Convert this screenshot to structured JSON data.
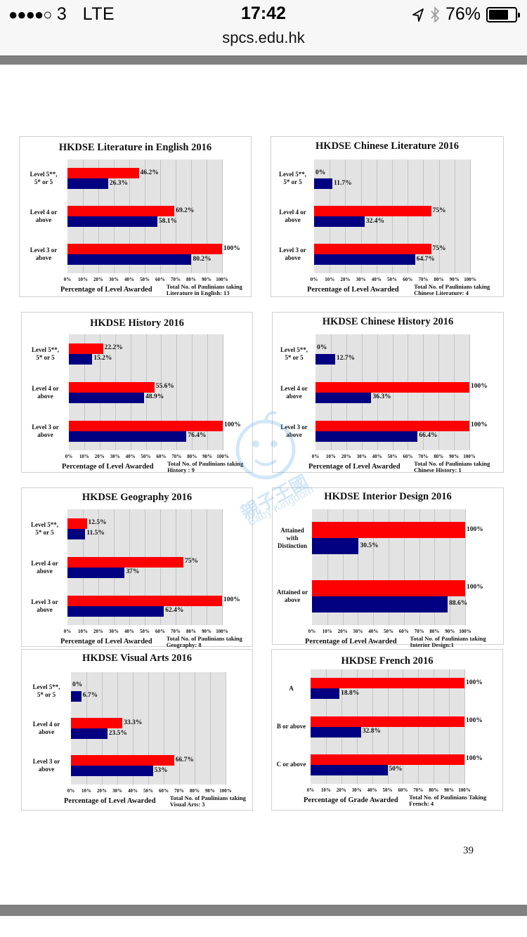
{
  "status_bar": {
    "signal": "●●●●○",
    "carrier": "3",
    "network": "LTE",
    "time": "17:42",
    "battery": "76%",
    "battery_level": 0.76
  },
  "browser": {
    "url": "spcs.edu.hk"
  },
  "page_number": "39",
  "watermark": {
    "chinese": "親子王國",
    "english": "Baby Kingdom"
  },
  "colors": {
    "series_red": "#ff0000",
    "series_blue": "#000080",
    "plot_bg": "#e3e3e3"
  },
  "chart_data": [
    {
      "type": "bar",
      "orientation": "horizontal",
      "title": "HKDSE Literature in English 2016",
      "categories": [
        "Level 5**, 5* or 5",
        "Level 4 or above",
        "Level 3 or above"
      ],
      "category_lines": [
        [
          "Level 5**,",
          "5* or 5"
        ],
        [
          "Level 4 or",
          "above"
        ],
        [
          "Level 3 or",
          "above"
        ]
      ],
      "series": [
        {
          "name": "red",
          "values": [
            46.2,
            69.2,
            100
          ],
          "labels": [
            "46.2%",
            "69.2%",
            "100%"
          ]
        },
        {
          "name": "blue",
          "values": [
            26.3,
            58.1,
            80.2
          ],
          "labels": [
            "26.3%",
            "58.1%",
            "80.2%"
          ]
        }
      ],
      "xticks": [
        "0%",
        "10%",
        "20%",
        "30%",
        "40%",
        "50%",
        "60%",
        "70%",
        "80%",
        "90%",
        "100%"
      ],
      "xlim": [
        0,
        100
      ],
      "xlabel": "Percentage of Level Awarded",
      "note": [
        "Total No. of Paulinians taking",
        "Literature in English: 13"
      ],
      "grid": true
    },
    {
      "type": "bar",
      "orientation": "horizontal",
      "title": "HKDSE Chinese Literature 2016",
      "categories": [
        "Level 5**, 5* or 5",
        "Level 4 or above",
        "Level 3 or above"
      ],
      "category_lines": [
        [
          "Level 5**,",
          "5* or 5"
        ],
        [
          "Level 4 or",
          "above"
        ],
        [
          "Level 3 or",
          "above"
        ]
      ],
      "series": [
        {
          "name": "red",
          "values": [
            0,
            75,
            75
          ],
          "labels": [
            "0%",
            "75%",
            "75%"
          ]
        },
        {
          "name": "blue",
          "values": [
            11.7,
            32.4,
            64.7
          ],
          "labels": [
            "11.7%",
            "32.4%",
            "64.7%"
          ]
        }
      ],
      "xticks": [
        "0%",
        "10%",
        "20%",
        "30%",
        "40%",
        "50%",
        "60%",
        "70%",
        "80%",
        "90%",
        "100%"
      ],
      "xlim": [
        0,
        100
      ],
      "xlabel": "Percentage of Level Awarded",
      "note": [
        "Total No. of Paulinians taking",
        "Chinese Literature: 4"
      ],
      "grid": true
    },
    {
      "type": "bar",
      "orientation": "horizontal",
      "title": "HKDSE History 2016",
      "categories": [
        "Level 5**, 5* or 5",
        "Level 4 or above",
        "Level 3 or above"
      ],
      "category_lines": [
        [
          "Level 5**,",
          "5* or 5"
        ],
        [
          "Level 4 or",
          "above"
        ],
        [
          "Level 3 or",
          "above"
        ]
      ],
      "series": [
        {
          "name": "red",
          "values": [
            22.2,
            55.6,
            100
          ],
          "labels": [
            "22.2%",
            "55.6%",
            "100%"
          ]
        },
        {
          "name": "blue",
          "values": [
            15.2,
            48.9,
            76.4
          ],
          "labels": [
            "15.2%",
            "48.9%",
            "76.4%"
          ]
        }
      ],
      "xticks": [
        "0%",
        "10%",
        "20%",
        "30%",
        "40%",
        "50%",
        "60%",
        "70%",
        "80%",
        "90%",
        "100%"
      ],
      "xlim": [
        0,
        100
      ],
      "xlabel": "Percentage of Level Awarded",
      "note": [
        "Total No. of Paulinians taking",
        "History : 9"
      ],
      "grid": true
    },
    {
      "type": "bar",
      "orientation": "horizontal",
      "title": "HKDSE Chinese History 2016",
      "categories": [
        "Level 5**, 5* or 5",
        "Level 4 or above",
        "Level 3 or above"
      ],
      "category_lines": [
        [
          "Level 5**,",
          "5* or 5"
        ],
        [
          "Level 4 or",
          "above"
        ],
        [
          "Level 3 or",
          "above"
        ]
      ],
      "series": [
        {
          "name": "red",
          "values": [
            0,
            100,
            100
          ],
          "labels": [
            "0%",
            "100%",
            "100%"
          ]
        },
        {
          "name": "blue",
          "values": [
            12.7,
            36.3,
            66.4
          ],
          "labels": [
            "12.7%",
            "36.3%",
            "66.4%"
          ]
        }
      ],
      "xticks": [
        "0%",
        "10%",
        "20%",
        "30%",
        "40%",
        "50%",
        "60%",
        "70%",
        "80%",
        "90%",
        "100%"
      ],
      "xlim": [
        0,
        100
      ],
      "xlabel": "Percentage of Level Awarded",
      "note": [
        "Total No. of Paulinians taking",
        "Chinese History: 1"
      ],
      "grid": true
    },
    {
      "type": "bar",
      "orientation": "horizontal",
      "title": "HKDSE Geography 2016",
      "categories": [
        "Level 5**, 5* or 5",
        "Level 4 or above",
        "Level 3 or above"
      ],
      "category_lines": [
        [
          "Level 5**,",
          "5* or 5"
        ],
        [
          "Level 4 or",
          "above"
        ],
        [
          "Level 3 or",
          "above"
        ]
      ],
      "series": [
        {
          "name": "red",
          "values": [
            12.5,
            75,
            100
          ],
          "labels": [
            "12.5%",
            "75%",
            "100%"
          ]
        },
        {
          "name": "blue",
          "values": [
            11.5,
            37,
            62.4
          ],
          "labels": [
            "11.5%",
            "37%",
            "62.4%"
          ]
        }
      ],
      "xticks": [
        "0%",
        "10%",
        "20%",
        "30%",
        "40%",
        "50%",
        "60%",
        "70%",
        "80%",
        "90%",
        "100%"
      ],
      "xlim": [
        0,
        100
      ],
      "xlabel": "Percentage of Level Awarded",
      "note": [
        "Total No. of Paulinians taking",
        "Geography: 8"
      ],
      "grid": true
    },
    {
      "type": "bar",
      "orientation": "horizontal",
      "title": "HKDSE Interior Design 2016",
      "categories": [
        "Attained with Distinction",
        "Attained or above"
      ],
      "category_lines": [
        [
          "Attained",
          "with",
          "Distinction"
        ],
        [
          "Attained or",
          "above"
        ]
      ],
      "series": [
        {
          "name": "red",
          "values": [
            100,
            100
          ],
          "labels": [
            "100%",
            "100%"
          ]
        },
        {
          "name": "blue",
          "values": [
            30.5,
            88.6
          ],
          "labels": [
            "30.5%",
            "88.6%"
          ]
        }
      ],
      "xticks": [
        "0%",
        "10%",
        "20%",
        "30%",
        "40%",
        "50%",
        "60%",
        "70%",
        "80%",
        "90%",
        "100%"
      ],
      "xlim": [
        0,
        100
      ],
      "xlabel": "Percentage of Level Awarded",
      "note": [
        "Total No. of Paulinians taking",
        "Interior Design:1"
      ],
      "grid": true
    },
    {
      "type": "bar",
      "orientation": "horizontal",
      "title": "HKDSE Visual Arts 2016",
      "categories": [
        "Level 5**, 5* or 5",
        "Level 4 or above",
        "Level 3 or above"
      ],
      "category_lines": [
        [
          "Level 5**,",
          "5* or 5"
        ],
        [
          "Level 4 or",
          "above"
        ],
        [
          "Level 3 or",
          "above"
        ]
      ],
      "series": [
        {
          "name": "red",
          "values": [
            0,
            33.3,
            66.7
          ],
          "labels": [
            "0%",
            "33.3%",
            "66.7%"
          ]
        },
        {
          "name": "blue",
          "values": [
            6.7,
            23.5,
            53
          ],
          "labels": [
            "6.7%",
            "23.5%",
            "53%"
          ]
        }
      ],
      "xticks": [
        "0%",
        "10%",
        "20%",
        "30%",
        "40%",
        "50%",
        "60%",
        "70%",
        "80%",
        "90%",
        "100%"
      ],
      "xlim": [
        0,
        100
      ],
      "xlabel": "Percentage of Level Awarded",
      "note": [
        "Total No. of Paulinians taking",
        "Visual Arts: 3"
      ],
      "grid": true
    },
    {
      "type": "bar",
      "orientation": "horizontal",
      "title": "HKDSE French 2016",
      "categories": [
        "A",
        "B or above",
        "C or above"
      ],
      "category_lines": [
        [
          "A"
        ],
        [
          "B or above"
        ],
        [
          "C or above"
        ]
      ],
      "series": [
        {
          "name": "red",
          "values": [
            100,
            100,
            100
          ],
          "labels": [
            "100%",
            "100%",
            "100%"
          ]
        },
        {
          "name": "blue",
          "values": [
            18.8,
            32.8,
            50
          ],
          "labels": [
            "18.8%",
            "32.8%",
            "50%"
          ]
        }
      ],
      "xticks": [
        "0%",
        "10%",
        "20%",
        "30%",
        "40%",
        "50%",
        "60%",
        "70%",
        "80%",
        "90%",
        "100%"
      ],
      "xlim": [
        0,
        100
      ],
      "xlabel": "Percentage of Grade Awarded",
      "note": [
        "Total No. of Paulinians Taking",
        "French: 4"
      ],
      "grid": true
    }
  ]
}
